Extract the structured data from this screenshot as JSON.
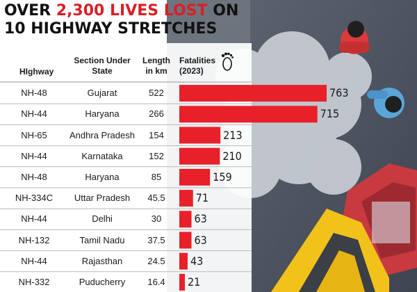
{
  "title": {
    "line1_prefix": "OVER ",
    "line1_highlight": "2,300 LIVES LOST",
    "line1_suffix": " ON",
    "line2": "10 HIGHWAY STRETCHES"
  },
  "headers": {
    "highway": "HIghway",
    "section_line1": "Section Under",
    "section_line2": "State",
    "length_line1": "Length",
    "length_line2": "in km",
    "fatalities_line1": "Fatalities",
    "fatalities_line2": "(2023)"
  },
  "icons": {
    "fatalities": "footprint-icon"
  },
  "colors": {
    "bar": "#e8202a",
    "highlight": "#d91f26",
    "row_divider": "#b9b9b9"
  },
  "chart_data": {
    "type": "bar",
    "orientation": "horizontal",
    "categories": [
      "NH-48 Gujarat",
      "NH-44 Haryana",
      "NH-65 Andhra Pradesh",
      "NH-44 Karnataka",
      "NH-48 Haryana",
      "NH-334C Uttar Pradesh",
      "NH-44 Delhi",
      "NH-132 Tamil Nadu",
      "NH-44 Rajasthan",
      "NH-332 Puducherry"
    ],
    "rows": [
      {
        "highway": "NH-48",
        "state": "Gujarat",
        "length_km": "522",
        "fatalities": 763
      },
      {
        "highway": "NH-44",
        "state": "Haryana",
        "length_km": "266",
        "fatalities": 715
      },
      {
        "highway": "NH-65",
        "state": "Andhra Pradesh",
        "length_km": "154",
        "fatalities": 213
      },
      {
        "highway": "NH-44",
        "state": "Karnataka",
        "length_km": "152",
        "fatalities": 210
      },
      {
        "highway": "NH-48",
        "state": "Haryana",
        "length_km": "85",
        "fatalities": 159
      },
      {
        "highway": "NH-334C",
        "state": "Uttar Pradesh",
        "length_km": "45.5",
        "fatalities": 71
      },
      {
        "highway": "NH-44",
        "state": "Delhi",
        "length_km": "30",
        "fatalities": 63
      },
      {
        "highway": "NH-132",
        "state": "Tamil Nadu",
        "length_km": "37.5",
        "fatalities": 63
      },
      {
        "highway": "NH-44",
        "state": "Rajasthan",
        "length_km": "24.5",
        "fatalities": 43
      },
      {
        "highway": "NH-332",
        "state": "Puducherry",
        "length_km": "16.4",
        "fatalities": 21
      }
    ],
    "values": [
      763,
      715,
      213,
      210,
      159,
      71,
      63,
      63,
      43,
      21
    ],
    "title": "OVER 2,300 LIVES LOST ON 10 HIGHWAY STRETCHES",
    "xlabel": "",
    "ylabel": "",
    "xlim": [
      0,
      763
    ],
    "grid": false,
    "legend": "none"
  }
}
